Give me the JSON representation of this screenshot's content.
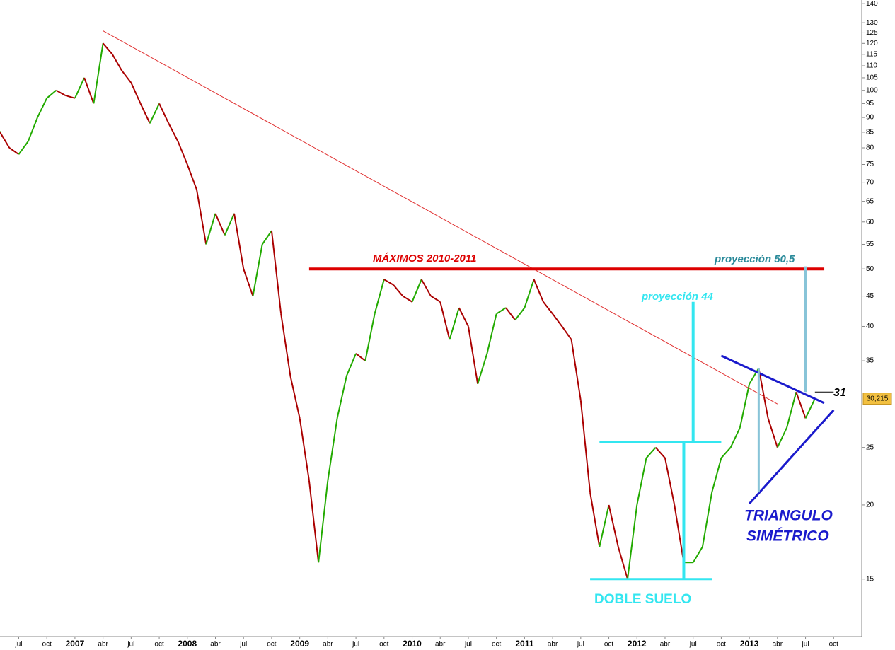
{
  "chart_data": {
    "type": "line",
    "log_scale": true,
    "x": [
      "2006-05",
      "2006-06",
      "2006-07",
      "2006-08",
      "2006-09",
      "2006-10",
      "2006-11",
      "2006-12",
      "2007-01",
      "2007-02",
      "2007-03",
      "2007-04",
      "2007-05",
      "2007-06",
      "2007-07",
      "2007-08",
      "2007-09",
      "2007-10",
      "2007-11",
      "2007-12",
      "2008-01",
      "2008-02",
      "2008-03",
      "2008-04",
      "2008-05",
      "2008-06",
      "2008-07",
      "2008-08",
      "2008-09",
      "2008-10",
      "2008-11",
      "2008-12",
      "2009-01",
      "2009-02",
      "2009-03",
      "2009-04",
      "2009-05",
      "2009-06",
      "2009-07",
      "2009-08",
      "2009-09",
      "2009-10",
      "2009-11",
      "2009-12",
      "2010-01",
      "2010-02",
      "2010-03",
      "2010-04",
      "2010-05",
      "2010-06",
      "2010-07",
      "2010-08",
      "2010-09",
      "2010-10",
      "2010-11",
      "2010-12",
      "2011-01",
      "2011-02",
      "2011-03",
      "2011-04",
      "2011-05",
      "2011-06",
      "2011-07",
      "2011-08",
      "2011-09",
      "2011-10",
      "2011-11",
      "2011-12",
      "2012-01",
      "2012-02",
      "2012-03",
      "2012-04",
      "2012-05",
      "2012-06",
      "2012-07",
      "2012-08",
      "2012-09",
      "2012-10",
      "2012-11",
      "2012-12",
      "2013-01",
      "2013-02",
      "2013-03",
      "2013-04",
      "2013-05",
      "2013-06",
      "2013-07",
      "2013-08"
    ],
    "series": [
      {
        "up_color": "#22aa00",
        "down_color": "#aa0000",
        "values": [
          85,
          80,
          78,
          82,
          90,
          97,
          100,
          98,
          97,
          105,
          95,
          120,
          115,
          108,
          103,
          95,
          88,
          95,
          88,
          82,
          75,
          68,
          55,
          62,
          57,
          62,
          50,
          45,
          55,
          58,
          42,
          33,
          28,
          22,
          16,
          22,
          28,
          33,
          36,
          35,
          42,
          48,
          47,
          45,
          44,
          48,
          45,
          44,
          38,
          43,
          40,
          32,
          36,
          42,
          43,
          41,
          43,
          48,
          44,
          42,
          40,
          38,
          30,
          21,
          17,
          20,
          17,
          15,
          20,
          24,
          25,
          24,
          20,
          16,
          16,
          17,
          21,
          24,
          25,
          27,
          32,
          34,
          28,
          25,
          27,
          31,
          28,
          30.2
        ]
      }
    ],
    "xlim": [
      "2006-05",
      "2014-01"
    ],
    "ylim": [
      12,
      142
    ],
    "yticks": [
      15,
      20,
      25,
      35,
      40,
      45,
      50,
      55,
      60,
      65,
      70,
      75,
      80,
      85,
      90,
      95,
      100,
      105,
      110,
      115,
      120,
      125,
      130,
      140
    ],
    "xticks": [
      {
        "value": "2006-07",
        "label": "jul"
      },
      {
        "value": "2006-10",
        "label": "oct"
      },
      {
        "value": "2007-01",
        "label": "2007"
      },
      {
        "value": "2007-04",
        "label": "abr"
      },
      {
        "value": "2007-07",
        "label": "jul"
      },
      {
        "value": "2007-10",
        "label": "oct"
      },
      {
        "value": "2008-01",
        "label": "2008"
      },
      {
        "value": "2008-04",
        "label": "abr"
      },
      {
        "value": "2008-07",
        "label": "jul"
      },
      {
        "value": "2008-10",
        "label": "oct"
      },
      {
        "value": "2009-01",
        "label": "2009"
      },
      {
        "value": "2009-04",
        "label": "abr"
      },
      {
        "value": "2009-07",
        "label": "jul"
      },
      {
        "value": "2009-10",
        "label": "oct"
      },
      {
        "value": "2010-01",
        "label": "2010"
      },
      {
        "value": "2010-04",
        "label": "abr"
      },
      {
        "value": "2010-07",
        "label": "jul"
      },
      {
        "value": "2010-10",
        "label": "oct"
      },
      {
        "value": "2011-01",
        "label": "2011"
      },
      {
        "value": "2011-04",
        "label": "abr"
      },
      {
        "value": "2011-07",
        "label": "jul"
      },
      {
        "value": "2011-10",
        "label": "oct"
      },
      {
        "value": "2012-01",
        "label": "2012"
      },
      {
        "value": "2012-04",
        "label": "abr"
      },
      {
        "value": "2012-07",
        "label": "jul"
      },
      {
        "value": "2012-10",
        "label": "oct"
      },
      {
        "value": "2013-01",
        "label": "2013"
      },
      {
        "value": "2013-04",
        "label": "abr"
      },
      {
        "value": "2013-07",
        "label": "jul"
      },
      {
        "value": "2013-10",
        "label": "oct"
      }
    ],
    "last_price": {
      "value": 30.215,
      "label": "30,215",
      "color": "#f2c040"
    },
    "lines": [
      {
        "color": "#e03030",
        "x": [
          "2007-04",
          "2013-04"
        ],
        "y": [
          126,
          29.6
        ]
      },
      {
        "color": "#dd0000",
        "x": [
          "2009-02",
          "2013-09"
        ],
        "y": [
          50,
          50
        ]
      },
      {
        "color": "#33e6f0",
        "x": [
          "2011-09",
          "2012-10"
        ],
        "y": [
          25.5,
          25.5
        ]
      },
      {
        "color": "#33e6f0",
        "x": [
          "2011-08",
          "2012-09"
        ],
        "y": [
          15,
          15
        ]
      },
      {
        "color": "#33e6f0",
        "x": [
          "2012-06",
          "2012-06"
        ],
        "y": [
          15,
          25.5
        ]
      },
      {
        "color": "#33e6f0",
        "x": [
          "2012-07",
          "2012-07"
        ],
        "y": [
          25.5,
          44
        ]
      },
      {
        "color": "#1a1acc",
        "x": [
          "2012-10",
          "2013-09"
        ],
        "y": [
          35.7,
          29.7
        ]
      },
      {
        "color": "#1a1acc",
        "x": [
          "2013-01",
          "2013-10"
        ],
        "y": [
          20.1,
          28.9
        ]
      },
      {
        "color": "#88c4d8",
        "x": [
          "2013-02",
          "2013-02"
        ],
        "y": [
          21,
          34
        ]
      },
      {
        "color": "#88c4d8",
        "x": [
          "2013-07",
          "2013-07"
        ],
        "y": [
          31,
          50.5
        ]
      },
      {
        "color": "#000000",
        "x": [
          "2013-08",
          "2013-10"
        ],
        "y": [
          31,
          31
        ]
      }
    ],
    "annotations": [
      "MÁXIMOS 2010-2011",
      "proyección 44",
      "proyección 50,5",
      "DOBLE SUELO",
      "TRIANGULO",
      "SIMÉTRICO",
      "31"
    ]
  }
}
